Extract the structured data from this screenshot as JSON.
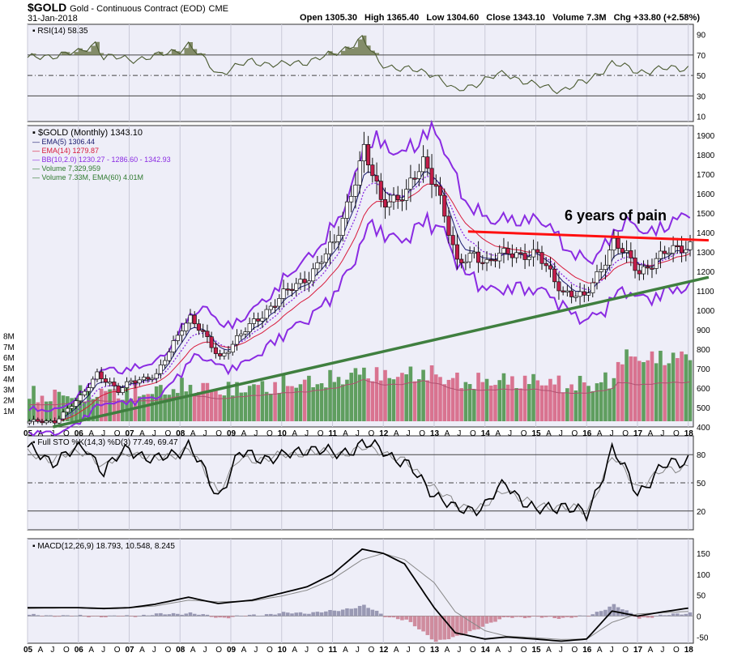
{
  "header": {
    "symbol": "$GOLD",
    "description": "Gold - Continuous Contract (EOD)",
    "exchange": "CME",
    "date": "31-Jan-2018",
    "open": "Open 1305.30",
    "high": "High 1365.40",
    "low": "Low 1304.60",
    "close": "Close 1343.10",
    "volume": "Volume 7.3M",
    "chg": "Chg +33.80 (+2.58%)"
  },
  "colors": {
    "background": "#eeeef8",
    "up_candle": "#ffffff",
    "down_candle": "#c41e4a",
    "ema5": "#1a1a6e",
    "ema14": "#d81b3c",
    "bollinger": "#8a2be2",
    "volume_up": "#5f9e5f",
    "volume_down": "#d97390",
    "resistance_line": "#ff1010",
    "support_line": "#3f7f3f",
    "rsi_fill": "#707a50"
  },
  "annotation": "6 years of pain",
  "chart_data": [
    {
      "type": "line",
      "panel": "RSI",
      "legend": "RSI(14) 58.35",
      "y_ticks": [
        10,
        30,
        50,
        70,
        90
      ],
      "ylim": [
        5,
        100
      ],
      "reference_lines": [
        30,
        50,
        70
      ],
      "x_dates": [
        "2005-01",
        "2005-07",
        "2006-01",
        "2006-05",
        "2006-07",
        "2007-01",
        "2007-07",
        "2008-01",
        "2008-03",
        "2008-10",
        "2009-06",
        "2010-01",
        "2010-07",
        "2011-01",
        "2011-08",
        "2011-12",
        "2012-06",
        "2013-01",
        "2013-06",
        "2014-01",
        "2014-06",
        "2015-01",
        "2015-07",
        "2016-01",
        "2016-07",
        "2017-01",
        "2017-07",
        "2018-01"
      ],
      "values": [
        66,
        70,
        72,
        82,
        68,
        66,
        68,
        76,
        80,
        52,
        64,
        60,
        64,
        70,
        86,
        62,
        56,
        52,
        34,
        46,
        52,
        40,
        36,
        44,
        62,
        54,
        56,
        58
      ]
    },
    {
      "type": "candlestick",
      "panel": "price",
      "legend": [
        "$GOLD (Monthly) 1343.10",
        "EMA(5) 1306.44",
        "EMA(14) 1279.87",
        "BB(10,2.0) 1230.27 - 1286.60 - 1342.93",
        "Volume 7,329,959",
        "Volume 7.33M, EMA(60) 4.01M"
      ],
      "y_ticks": [
        400,
        500,
        600,
        700,
        800,
        900,
        1000,
        1100,
        1200,
        1300,
        1400,
        1500,
        1600,
        1700,
        1800,
        1900
      ],
      "ylim": [
        400,
        1950
      ],
      "volume_ticks": [
        "1M",
        "2M",
        "3M",
        "4M",
        "5M",
        "6M",
        "7M",
        "8M"
      ],
      "x_dates": [
        "2005-01",
        "2005-07",
        "2006-01",
        "2006-05",
        "2006-10",
        "2007-01",
        "2007-07",
        "2008-01",
        "2008-03",
        "2008-10",
        "2009-06",
        "2010-01",
        "2010-07",
        "2011-01",
        "2011-08",
        "2011-12",
        "2012-06",
        "2012-10",
        "2013-01",
        "2013-06",
        "2013-10",
        "2014-01",
        "2014-06",
        "2015-01",
        "2015-07",
        "2015-12",
        "2016-07",
        "2017-01",
        "2017-07",
        "2018-01"
      ],
      "close": [
        425,
        430,
        550,
        680,
        580,
        640,
        660,
        920,
        960,
        760,
        940,
        1080,
        1180,
        1340,
        1820,
        1560,
        1600,
        1760,
        1660,
        1230,
        1300,
        1240,
        1300,
        1280,
        1100,
        1060,
        1350,
        1200,
        1290,
        1343
      ],
      "resistance_line": {
        "start": [
          "2013-09",
          1405
        ],
        "end": [
          "2018-02",
          1360
        ]
      },
      "support_line": {
        "start": [
          "2005-07",
          400
        ],
        "end": [
          "2018-02",
          1170
        ]
      }
    },
    {
      "type": "line",
      "panel": "Full STO",
      "legend": "Full STO %K(14,3) %D(3) 77.49, 69.47",
      "y_ticks": [
        20,
        50,
        80
      ],
      "ylim": [
        0,
        100
      ],
      "reference_lines": [
        20,
        50,
        80
      ],
      "x_dates": [
        "2005-01",
        "2005-07",
        "2006-03",
        "2006-07",
        "2007-01",
        "2007-07",
        "2008-03",
        "2008-10",
        "2009-03",
        "2010-01",
        "2010-07",
        "2011-01",
        "2011-08",
        "2012-01",
        "2012-06",
        "2013-01",
        "2013-06",
        "2014-01",
        "2014-06",
        "2015-01",
        "2015-07",
        "2016-01",
        "2016-07",
        "2017-01",
        "2017-07",
        "2018-01"
      ],
      "k_values": [
        85,
        74,
        88,
        62,
        88,
        72,
        90,
        36,
        80,
        76,
        88,
        80,
        90,
        86,
        70,
        40,
        20,
        26,
        50,
        18,
        28,
        14,
        86,
        40,
        66,
        77
      ],
      "d_values": [
        80,
        76,
        84,
        66,
        84,
        74,
        86,
        42,
        74,
        78,
        84,
        80,
        86,
        84,
        72,
        46,
        26,
        24,
        44,
        24,
        26,
        18,
        78,
        46,
        62,
        69
      ]
    },
    {
      "type": "line",
      "panel": "MACD",
      "legend": "MACD(12,26,9) 18.793, 10.548, 8.245",
      "y_ticks": [
        -50,
        0,
        50,
        100,
        150
      ],
      "ylim": [
        -65,
        185
      ],
      "x_dates": [
        "2005-01",
        "2006-01",
        "2006-07",
        "2007-01",
        "2007-07",
        "2008-03",
        "2008-10",
        "2009-06",
        "2010-01",
        "2010-07",
        "2011-01",
        "2011-08",
        "2012-01",
        "2012-06",
        "2013-01",
        "2013-06",
        "2014-01",
        "2014-06",
        "2015-01",
        "2015-07",
        "2016-01",
        "2016-07",
        "2017-01",
        "2017-07",
        "2018-01"
      ],
      "macd": [
        20,
        20,
        18,
        20,
        28,
        45,
        30,
        38,
        55,
        70,
        100,
        160,
        150,
        125,
        20,
        -40,
        -55,
        -50,
        -55,
        -60,
        -55,
        12,
        0,
        10,
        19
      ],
      "signal": [
        18,
        20,
        19,
        20,
        24,
        38,
        34,
        36,
        48,
        62,
        88,
        135,
        150,
        135,
        80,
        10,
        -35,
        -48,
        -52,
        -56,
        -55,
        -15,
        5,
        8,
        11
      ],
      "histogram": [
        2,
        0,
        -1,
        0,
        4,
        7,
        -4,
        2,
        7,
        8,
        12,
        25,
        0,
        -10,
        -60,
        -50,
        -20,
        -2,
        -3,
        -4,
        0,
        27,
        -5,
        2,
        8
      ]
    }
  ],
  "x_axis": {
    "year_labels": [
      "05",
      "06",
      "07",
      "08",
      "09",
      "10",
      "11",
      "12",
      "13",
      "14",
      "15",
      "16",
      "17",
      "18"
    ],
    "month_labels": [
      "A",
      "J",
      "O"
    ]
  }
}
